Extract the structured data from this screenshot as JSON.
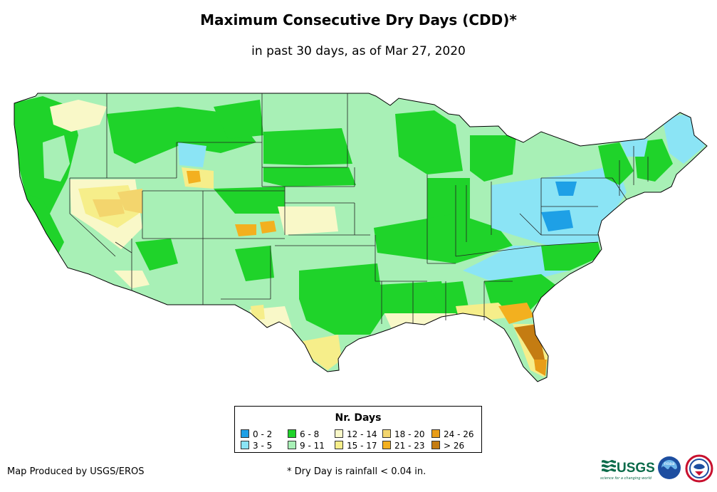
{
  "title": "Maximum Consecutive Dry Days (CDD)*",
  "subtitle": "in past 30 days, as of Mar 27, 2020",
  "legend": {
    "title": "Nr. Days",
    "items": [
      {
        "label": "0 - 2",
        "color": "#1ea0e6"
      },
      {
        "label": "3 - 5",
        "color": "#8be4f5"
      },
      {
        "label": "6 - 8",
        "color": "#1fd32a"
      },
      {
        "label": "9 - 11",
        "color": "#a8f0b6"
      },
      {
        "label": "12 - 14",
        "color": "#f9f8c8"
      },
      {
        "label": "15 - 17",
        "color": "#f6ee8a"
      },
      {
        "label": "18 - 20",
        "color": "#f3d56d"
      },
      {
        "label": "21 - 23",
        "color": "#f3b01f"
      },
      {
        "label": "24 - 26",
        "color": "#e89d18"
      },
      {
        "label": "> 26",
        "color": "#c47c12"
      }
    ]
  },
  "credit": "Map Produced by USGS/EROS",
  "footnote": "* Dry Day is rainfall < 0.04 in.",
  "logos": {
    "usgs": "USGS",
    "usgs_tagline": "science for a changing world",
    "noaa": "noaa"
  }
}
